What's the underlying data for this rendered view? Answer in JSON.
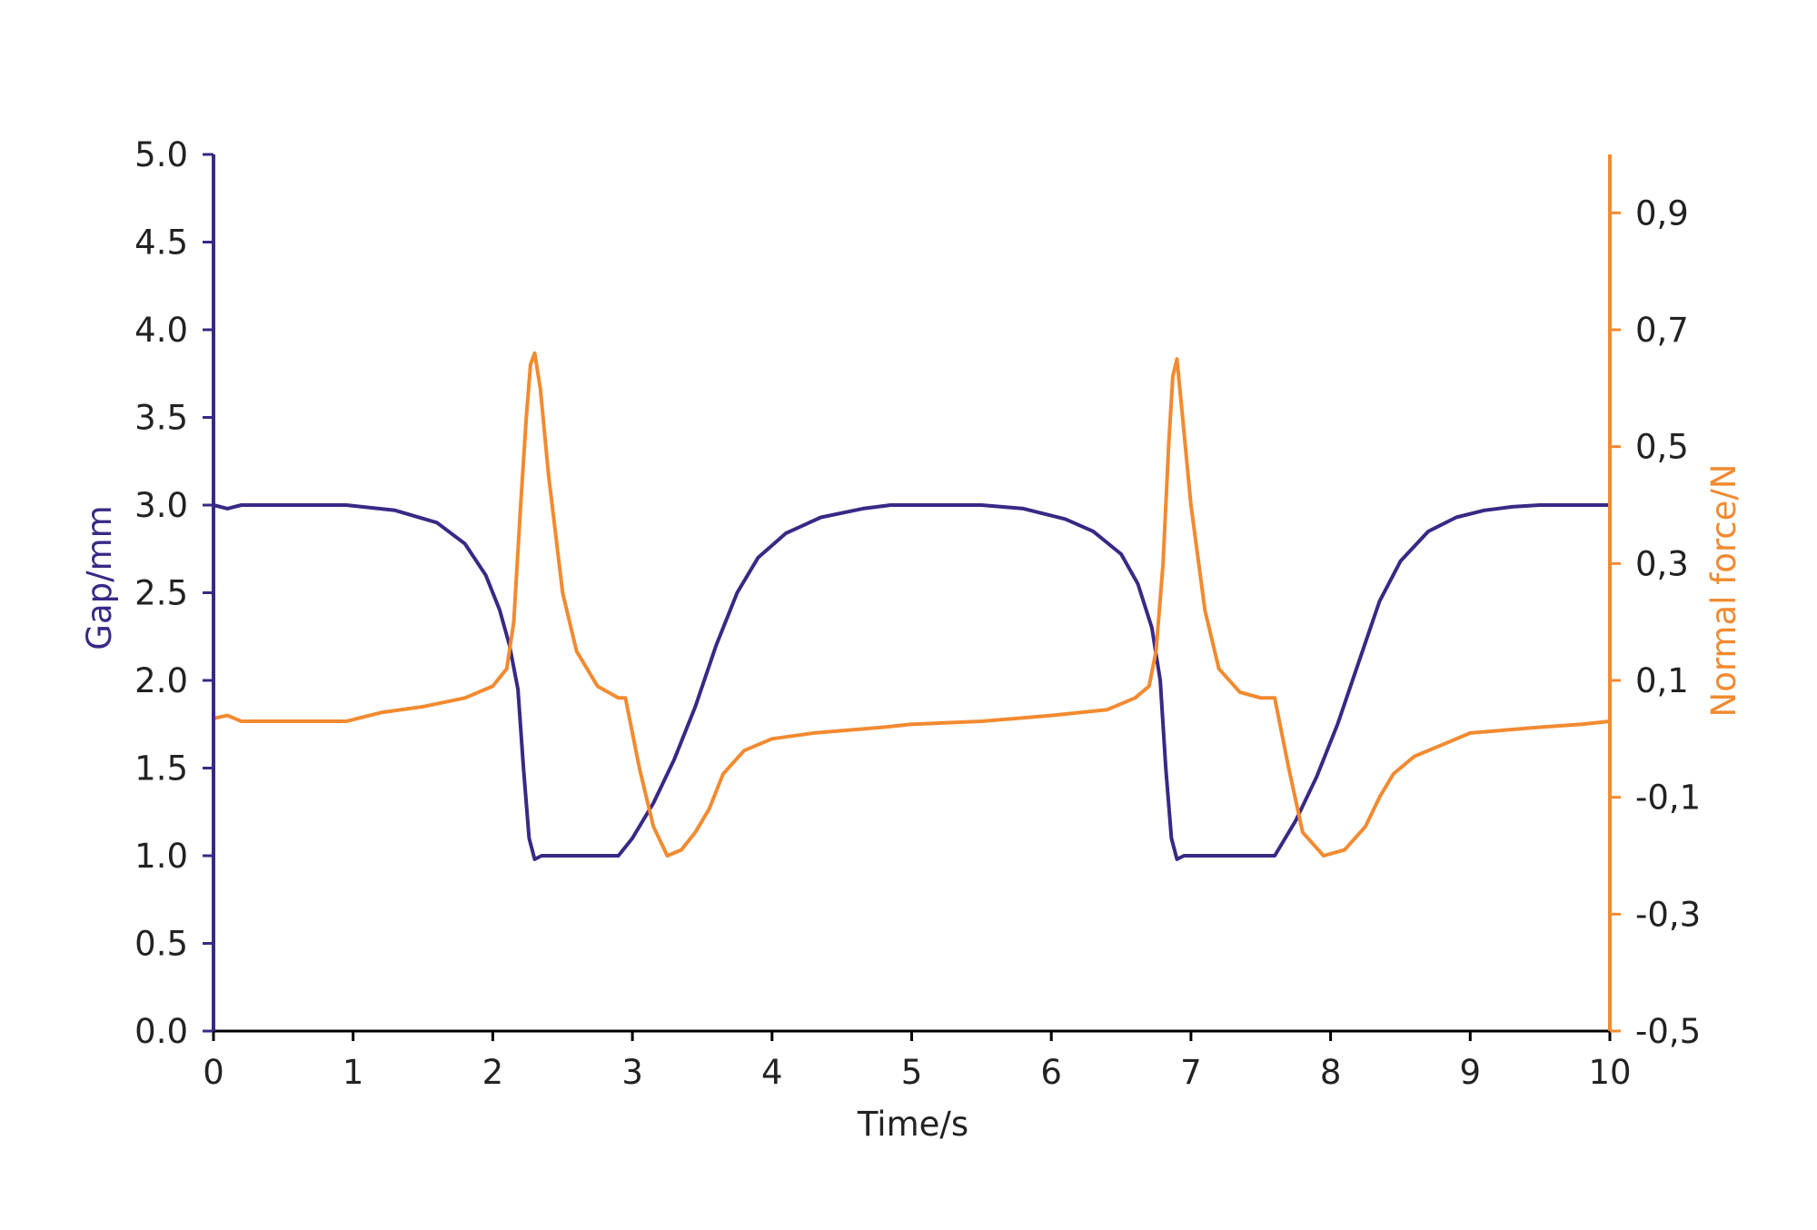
{
  "colors": {
    "gap": "#3a2885",
    "force": "#f28a30",
    "axis_text": "#222222",
    "background": "#ffffff"
  },
  "chart_data": {
    "type": "line",
    "xlabel": "Time/s",
    "ylabel_left": "Gap/mm",
    "ylabel_right": "Normal force/N",
    "xlim": [
      0,
      10
    ],
    "ylim_left": [
      0,
      5
    ],
    "ylim_right": [
      -0.5,
      1.0
    ],
    "x_ticks": [
      "0",
      "1",
      "2",
      "3",
      "4",
      "5",
      "6",
      "7",
      "8",
      "9",
      "10"
    ],
    "y_ticks_left": [
      "0.0",
      "0.5",
      "1.0",
      "1.5",
      "2.0",
      "2.5",
      "3.0",
      "3.5",
      "4.0",
      "4.5",
      "5.0"
    ],
    "y_ticks_right": [
      "-0,5",
      "-0,3",
      "-0,1",
      "0,1",
      "0,3",
      "0,5",
      "0,7",
      "0,9"
    ],
    "grid": false,
    "series": [
      {
        "name": "Gap/mm",
        "axis": "left",
        "x": [
          0,
          0.1,
          0.2,
          0.95,
          1.3,
          1.6,
          1.8,
          1.95,
          2.05,
          2.12,
          2.18,
          2.22,
          2.26,
          2.3,
          2.35,
          2.5,
          2.9,
          3.0,
          3.15,
          3.3,
          3.45,
          3.6,
          3.75,
          3.9,
          4.1,
          4.35,
          4.65,
          4.85,
          5.5,
          5.8,
          6.1,
          6.3,
          6.5,
          6.62,
          6.72,
          6.78,
          6.82,
          6.86,
          6.9,
          6.95,
          7.1,
          7.6,
          7.75,
          7.9,
          8.05,
          8.2,
          8.35,
          8.5,
          8.7,
          8.9,
          9.1,
          9.3,
          9.5,
          10.0
        ],
        "y": [
          3.0,
          2.98,
          3.0,
          3.0,
          2.97,
          2.9,
          2.78,
          2.6,
          2.4,
          2.2,
          1.95,
          1.5,
          1.1,
          0.98,
          1.0,
          1.0,
          1.0,
          1.1,
          1.3,
          1.55,
          1.85,
          2.2,
          2.5,
          2.7,
          2.84,
          2.93,
          2.98,
          3.0,
          3.0,
          2.98,
          2.92,
          2.85,
          2.72,
          2.55,
          2.3,
          2.0,
          1.5,
          1.1,
          0.98,
          1.0,
          1.0,
          1.0,
          1.2,
          1.45,
          1.75,
          2.1,
          2.45,
          2.68,
          2.85,
          2.93,
          2.97,
          2.99,
          3.0,
          3.0
        ]
      },
      {
        "name": "Normal force/N",
        "axis": "right",
        "x": [
          0,
          0.1,
          0.2,
          0.95,
          1.2,
          1.5,
          1.8,
          2.0,
          2.1,
          2.15,
          2.2,
          2.24,
          2.27,
          2.3,
          2.34,
          2.4,
          2.5,
          2.6,
          2.75,
          2.9,
          2.95,
          3.05,
          3.15,
          3.25,
          3.35,
          3.45,
          3.55,
          3.65,
          3.8,
          4.0,
          4.3,
          4.8,
          5.0,
          5.5,
          6.0,
          6.4,
          6.6,
          6.7,
          6.75,
          6.8,
          6.84,
          6.87,
          6.9,
          6.94,
          7.0,
          7.1,
          7.2,
          7.35,
          7.5,
          7.6,
          7.7,
          7.8,
          7.95,
          8.1,
          8.25,
          8.35,
          8.45,
          8.6,
          8.8,
          9.0,
          9.5,
          9.8,
          10.0
        ],
        "y": [
          0.035,
          0.04,
          0.03,
          0.03,
          0.045,
          0.055,
          0.07,
          0.09,
          0.12,
          0.2,
          0.4,
          0.55,
          0.64,
          0.66,
          0.6,
          0.45,
          0.25,
          0.15,
          0.09,
          0.07,
          0.07,
          -0.05,
          -0.15,
          -0.2,
          -0.19,
          -0.16,
          -0.12,
          -0.06,
          -0.02,
          0.0,
          0.01,
          0.02,
          0.025,
          0.03,
          0.04,
          0.05,
          0.07,
          0.09,
          0.15,
          0.3,
          0.5,
          0.62,
          0.65,
          0.55,
          0.4,
          0.22,
          0.12,
          0.08,
          0.07,
          0.07,
          -0.05,
          -0.16,
          -0.2,
          -0.19,
          -0.15,
          -0.1,
          -0.06,
          -0.03,
          -0.01,
          0.01,
          0.02,
          0.025,
          0.03
        ]
      }
    ]
  }
}
